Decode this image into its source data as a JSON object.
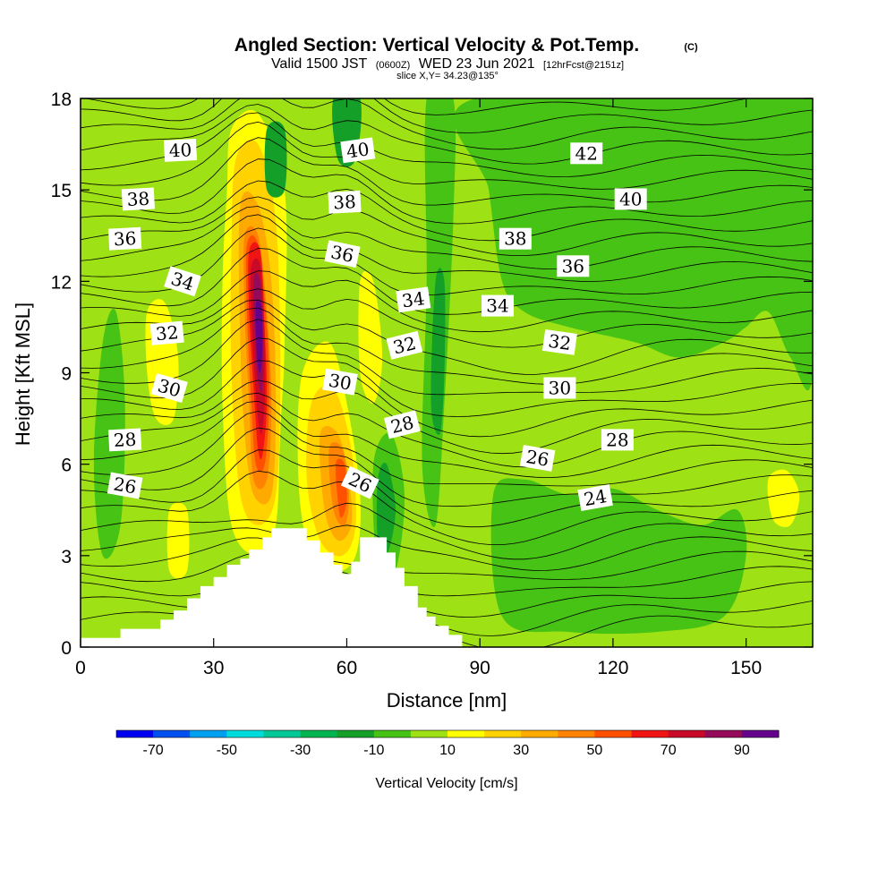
{
  "title": {
    "main": "Angled Section: Vertical Velocity & Pot.Temp.",
    "copyright": "(C)",
    "valid_prefix": "Valid 1500 JST",
    "valid_zulu": "(0600Z)",
    "valid_date": "WED 23 Jun 2021",
    "forecast": "[12hrFcst@2151z]",
    "slice": "slice X,Y= 34.23@135°"
  },
  "chart_data": {
    "type": "heatmap",
    "xlabel": "Distance [nm]",
    "ylabel": "Height [Kft MSL]",
    "xlim": [
      0,
      165
    ],
    "ylim": [
      0,
      18
    ],
    "x_ticks": [
      0,
      30,
      60,
      90,
      120,
      150
    ],
    "y_ticks": [
      0,
      3,
      6,
      9,
      12,
      15,
      18
    ],
    "colorbar": {
      "label": "Vertical Velocity [cm/s]",
      "tick_labels": [
        "-70",
        "-50",
        "-30",
        "-10",
        "10",
        "30",
        "50",
        "70",
        "90"
      ],
      "tick_values": [
        -70,
        -50,
        -30,
        -10,
        10,
        30,
        50,
        70,
        90
      ],
      "levels": [
        -80,
        -70,
        -60,
        -50,
        -40,
        -30,
        -20,
        -10,
        0,
        10,
        20,
        30,
        40,
        50,
        60,
        70,
        80,
        90,
        100
      ],
      "colors": [
        "#0000f0",
        "#0050f0",
        "#00a0f0",
        "#00dcdc",
        "#00c896",
        "#00b450",
        "#14a028",
        "#46c314",
        "#9ee114",
        "#ffff00",
        "#ffd200",
        "#ffaa00",
        "#ff8200",
        "#ff5000",
        "#f01414",
        "#c80a28",
        "#960a5a",
        "#64008c"
      ]
    },
    "background_level": 0,
    "velocity_regions": [
      {
        "level": 10,
        "points": [
          [
            34,
            17
          ],
          [
            40,
            17.5
          ],
          [
            46,
            15
          ],
          [
            46,
            10
          ],
          [
            45,
            7
          ],
          [
            44,
            4
          ],
          [
            40,
            3
          ],
          [
            34,
            4
          ],
          [
            32,
            8
          ],
          [
            32,
            12
          ],
          [
            33,
            15
          ]
        ]
      },
      {
        "level": 20,
        "points": [
          [
            35,
            16
          ],
          [
            40,
            16.5
          ],
          [
            44,
            14
          ],
          [
            45,
            9
          ],
          [
            44,
            5
          ],
          [
            40,
            4
          ],
          [
            36,
            5
          ],
          [
            34,
            9
          ],
          [
            34,
            13
          ]
        ]
      },
      {
        "level": 30,
        "points": [
          [
            36,
            14.5
          ],
          [
            40,
            14.5
          ],
          [
            43,
            12
          ],
          [
            44,
            8
          ],
          [
            43,
            5
          ],
          [
            39,
            5
          ],
          [
            37,
            7
          ],
          [
            36,
            10
          ]
        ]
      },
      {
        "level": 40,
        "points": [
          [
            37,
            13.5
          ],
          [
            40,
            13.5
          ],
          [
            42,
            11
          ],
          [
            43,
            8
          ],
          [
            42,
            5.5
          ],
          [
            39,
            5.5
          ],
          [
            38,
            8
          ],
          [
            37,
            11
          ]
        ]
      },
      {
        "level": 50,
        "points": [
          [
            37.5,
            13.2
          ],
          [
            40,
            13.2
          ],
          [
            42,
            10.5
          ],
          [
            42.5,
            8
          ],
          [
            41.5,
            6
          ],
          [
            39.5,
            6
          ],
          [
            38.5,
            8
          ],
          [
            37.5,
            11
          ]
        ]
      },
      {
        "level": 60,
        "points": [
          [
            38,
            13
          ],
          [
            40.5,
            13
          ],
          [
            41.5,
            10.5
          ],
          [
            42,
            8
          ],
          [
            41,
            6.3
          ],
          [
            40,
            6.5
          ],
          [
            39,
            8.5
          ],
          [
            38,
            11
          ]
        ]
      },
      {
        "level": 70,
        "points": [
          [
            38.5,
            12.5
          ],
          [
            40.5,
            12.5
          ],
          [
            41.5,
            10
          ],
          [
            41.5,
            8
          ],
          [
            40.8,
            7
          ],
          [
            40,
            7.5
          ],
          [
            39.2,
            9
          ],
          [
            38.5,
            11
          ]
        ]
      },
      {
        "level": 80,
        "points": [
          [
            39,
            12
          ],
          [
            40.5,
            12
          ],
          [
            41.2,
            10
          ],
          [
            41,
            8.5
          ],
          [
            40.3,
            8.5
          ],
          [
            39.5,
            9.5
          ]
        ]
      },
      {
        "level": 90,
        "points": [
          [
            39.5,
            11.2
          ],
          [
            40.7,
            11.2
          ],
          [
            41,
            10
          ],
          [
            40.5,
            9
          ],
          [
            39.8,
            9.5
          ]
        ]
      },
      {
        "level": 10,
        "points": [
          [
            50,
            9
          ],
          [
            56,
            10
          ],
          [
            60,
            8
          ],
          [
            63,
            5
          ],
          [
            62,
            3
          ],
          [
            57,
            2.5
          ],
          [
            51,
            3.5
          ],
          [
            49,
            6
          ]
        ]
      },
      {
        "level": 20,
        "points": [
          [
            52,
            8
          ],
          [
            57,
            8.5
          ],
          [
            61,
            6.5
          ],
          [
            62,
            4
          ],
          [
            59,
            3
          ],
          [
            54,
            3.5
          ],
          [
            51,
            5.5
          ]
        ]
      },
      {
        "level": 30,
        "points": [
          [
            54,
            7
          ],
          [
            58,
            7
          ],
          [
            60.5,
            5.5
          ],
          [
            61,
            4
          ],
          [
            58,
            3.5
          ],
          [
            55,
            4.5
          ]
        ]
      },
      {
        "level": 40,
        "points": [
          [
            56,
            6.5
          ],
          [
            59,
            6.5
          ],
          [
            60.5,
            5
          ],
          [
            59.5,
            4
          ],
          [
            57,
            4.5
          ]
        ]
      },
      {
        "level": 50,
        "points": [
          [
            57.5,
            6
          ],
          [
            59.5,
            6
          ],
          [
            60,
            4.8
          ],
          [
            58.5,
            4.3
          ]
        ]
      },
      {
        "level": 10,
        "points": [
          [
            15,
            11
          ],
          [
            19,
            11.3
          ],
          [
            22,
            9.5
          ],
          [
            21,
            7.5
          ],
          [
            17,
            7.5
          ],
          [
            15,
            9
          ]
        ]
      },
      {
        "level": 10,
        "points": [
          [
            63,
            12
          ],
          [
            66,
            12
          ],
          [
            68,
            9.5
          ],
          [
            66,
            8
          ],
          [
            63,
            9
          ]
        ]
      },
      {
        "level": 10,
        "points": [
          [
            155,
            5.5
          ],
          [
            159,
            5.8
          ],
          [
            162,
            5
          ],
          [
            160,
            4
          ],
          [
            156,
            4.2
          ]
        ]
      },
      {
        "level": 10,
        "points": [
          [
            20,
            4.5
          ],
          [
            24,
            4.5
          ],
          [
            24,
            2.5
          ],
          [
            20,
            2.5
          ]
        ]
      },
      {
        "level": -10,
        "points": [
          [
            89,
            18
          ],
          [
            165,
            18
          ],
          [
            165,
            9
          ],
          [
            160,
            9.5
          ],
          [
            155,
            11
          ],
          [
            150,
            10.5
          ],
          [
            145,
            10
          ],
          [
            135,
            9.5
          ],
          [
            125,
            10
          ],
          [
            110,
            10.5
          ],
          [
            100,
            11
          ],
          [
            95,
            12
          ],
          [
            92,
            15
          ]
        ]
      },
      {
        "level": -10,
        "points": [
          [
            78,
            18
          ],
          [
            84,
            18
          ],
          [
            84,
            14
          ],
          [
            82,
            8
          ],
          [
            80,
            4
          ],
          [
            77,
            6
          ],
          [
            78,
            12
          ]
        ]
      },
      {
        "level": -10,
        "points": [
          [
            66,
            6
          ],
          [
            70,
            7
          ],
          [
            73,
            5
          ],
          [
            71,
            2.5
          ],
          [
            67,
            2.5
          ]
        ]
      },
      {
        "level": -10,
        "points": [
          [
            93,
            5
          ],
          [
            100,
            5.5
          ],
          [
            110,
            5
          ],
          [
            120,
            5.2
          ],
          [
            130,
            4.5
          ],
          [
            140,
            4
          ],
          [
            148,
            4.5
          ],
          [
            150,
            3
          ],
          [
            145,
            1
          ],
          [
            130,
            0.5
          ],
          [
            110,
            0.5
          ],
          [
            95,
            1
          ]
        ]
      },
      {
        "level": -10,
        "points": [
          [
            5,
            10
          ],
          [
            8,
            11
          ],
          [
            10,
            8
          ],
          [
            9,
            4
          ],
          [
            5,
            3
          ],
          [
            3,
            6
          ]
        ]
      },
      {
        "level": -20,
        "points": [
          [
            67,
            5.5
          ],
          [
            69,
            6
          ],
          [
            71,
            4.5
          ],
          [
            69,
            3
          ],
          [
            67,
            3.5
          ]
        ]
      },
      {
        "level": -20,
        "points": [
          [
            80,
            12
          ],
          [
            82,
            12
          ],
          [
            82,
            9
          ],
          [
            81,
            7
          ],
          [
            79,
            8
          ]
        ]
      },
      {
        "level": -20,
        "points": [
          [
            57,
            18
          ],
          [
            63,
            18
          ],
          [
            62,
            16
          ],
          [
            58,
            16
          ]
        ]
      },
      {
        "level": -20,
        "points": [
          [
            42,
            17
          ],
          [
            46,
            17
          ],
          [
            46,
            15
          ],
          [
            42,
            15
          ]
        ]
      }
    ],
    "terrain": [
      [
        0,
        0.3
      ],
      [
        9,
        0.3
      ],
      [
        9,
        0.6
      ],
      [
        18,
        0.6
      ],
      [
        18,
        0.9
      ],
      [
        21,
        0.9
      ],
      [
        21,
        1.2
      ],
      [
        24,
        1.2
      ],
      [
        24,
        1.6
      ],
      [
        27,
        1.6
      ],
      [
        27,
        2
      ],
      [
        30,
        2
      ],
      [
        30,
        2.3
      ],
      [
        33,
        2.3
      ],
      [
        33,
        2.7
      ],
      [
        36,
        2.7
      ],
      [
        36,
        2.9
      ],
      [
        38,
        2.9
      ],
      [
        38,
        3.2
      ],
      [
        41,
        3.2
      ],
      [
        41,
        3.6
      ],
      [
        43,
        3.6
      ],
      [
        43,
        3.9
      ],
      [
        51,
        3.9
      ],
      [
        51,
        3.5
      ],
      [
        54,
        3.5
      ],
      [
        54,
        3.1
      ],
      [
        57,
        3.1
      ],
      [
        57,
        2.7
      ],
      [
        59,
        2.7
      ],
      [
        59,
        2.4
      ],
      [
        61,
        2.4
      ],
      [
        61,
        2.8
      ],
      [
        63,
        2.8
      ],
      [
        63,
        3.6
      ],
      [
        69,
        3.6
      ],
      [
        69,
        3.1
      ],
      [
        71,
        3.1
      ],
      [
        71,
        2.6
      ],
      [
        73,
        2.6
      ],
      [
        73,
        2
      ],
      [
        76,
        2
      ],
      [
        76,
        1.3
      ],
      [
        78,
        1.3
      ],
      [
        78,
        1
      ],
      [
        80,
        1
      ],
      [
        80,
        0.7
      ],
      [
        83,
        0.7
      ],
      [
        83,
        0.4
      ],
      [
        86,
        0.4
      ],
      [
        86,
        0
      ],
      [
        0,
        0
      ]
    ],
    "theta_labels": [
      {
        "text": "40",
        "x": 22.5,
        "y": 16.3,
        "angle": -3
      },
      {
        "text": "38",
        "x": 13,
        "y": 14.7,
        "angle": -3
      },
      {
        "text": "36",
        "x": 10,
        "y": 13.4,
        "angle": -3
      },
      {
        "text": "34",
        "x": 23,
        "y": 12.0,
        "angle": 18
      },
      {
        "text": "32",
        "x": 19.5,
        "y": 10.3,
        "angle": -5
      },
      {
        "text": "30",
        "x": 20,
        "y": 8.5,
        "angle": 16
      },
      {
        "text": "28",
        "x": 10,
        "y": 6.8,
        "angle": -3
      },
      {
        "text": "26",
        "x": 10,
        "y": 5.3,
        "angle": 10
      },
      {
        "text": "40",
        "x": 62.5,
        "y": 16.3,
        "angle": -8
      },
      {
        "text": "38",
        "x": 59.5,
        "y": 14.6,
        "angle": -3
      },
      {
        "text": "36",
        "x": 59,
        "y": 12.9,
        "angle": 12
      },
      {
        "text": "34",
        "x": 75,
        "y": 11.4,
        "angle": -8
      },
      {
        "text": "32",
        "x": 73,
        "y": 9.9,
        "angle": -14
      },
      {
        "text": "30",
        "x": 58.5,
        "y": 8.7,
        "angle": 10
      },
      {
        "text": "28",
        "x": 72.5,
        "y": 7.3,
        "angle": -14
      },
      {
        "text": "26",
        "x": 63,
        "y": 5.4,
        "angle": 25
      },
      {
        "text": "42",
        "x": 114,
        "y": 16.2,
        "angle": 0
      },
      {
        "text": "40",
        "x": 124,
        "y": 14.7,
        "angle": 0
      },
      {
        "text": "38",
        "x": 98,
        "y": 13.4,
        "angle": 0
      },
      {
        "text": "36",
        "x": 111,
        "y": 12.5,
        "angle": 0
      },
      {
        "text": "34",
        "x": 94,
        "y": 11.2,
        "angle": 0
      },
      {
        "text": "32",
        "x": 108,
        "y": 10.0,
        "angle": 8
      },
      {
        "text": "30",
        "x": 108,
        "y": 8.5,
        "angle": 0
      },
      {
        "text": "28",
        "x": 121,
        "y": 6.8,
        "angle": 0
      },
      {
        "text": "26",
        "x": 103,
        "y": 6.2,
        "angle": 10
      },
      {
        "text": "24",
        "x": 116,
        "y": 4.9,
        "angle": -10
      }
    ],
    "grid": false,
    "legend": "bottom"
  }
}
